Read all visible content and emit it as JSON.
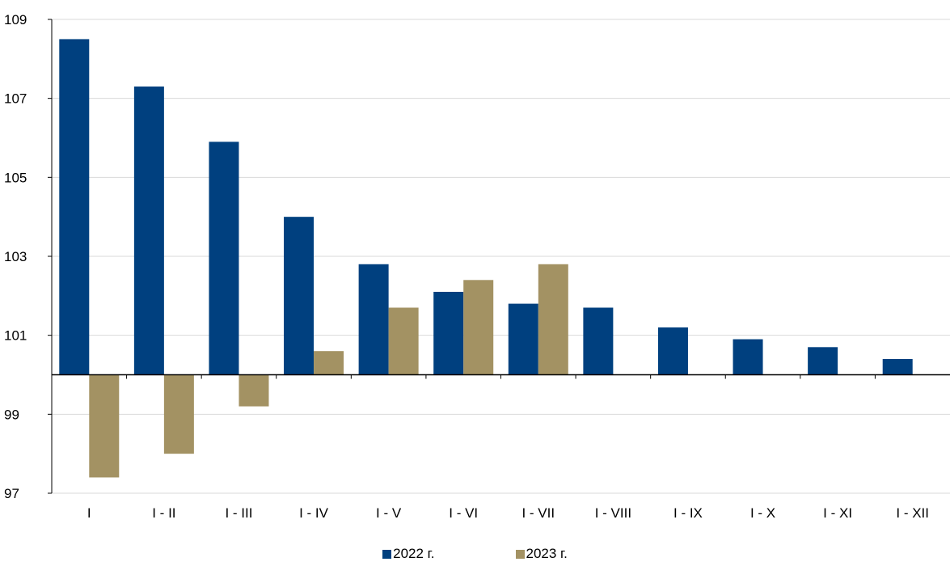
{
  "colors": {
    "series_2022": "#00407F",
    "series_2023": "#A39263",
    "grid": "#D9D9D9",
    "axis": "#000000"
  },
  "chart_data": {
    "type": "bar",
    "baseline": 100,
    "ylim": [
      97,
      109
    ],
    "yticks": [
      97,
      99,
      101,
      103,
      105,
      107,
      109
    ],
    "grid": true,
    "legend_position": "bottom",
    "categories": [
      "I",
      "I - II",
      "I - III",
      "I - IV",
      "I - V",
      "I - VI",
      "I - VII",
      "I - VIII",
      "I - IX",
      "I - X",
      "I - XI",
      "I - XII"
    ],
    "series": [
      {
        "name": "2022 г.",
        "values": [
          108.5,
          107.3,
          105.9,
          104.0,
          102.8,
          102.1,
          101.8,
          101.7,
          101.2,
          100.9,
          100.7,
          100.4
        ]
      },
      {
        "name": "2023 г.",
        "values": [
          97.4,
          98.0,
          99.2,
          100.6,
          101.7,
          102.4,
          102.8,
          null,
          null,
          null,
          null,
          null
        ]
      }
    ]
  }
}
